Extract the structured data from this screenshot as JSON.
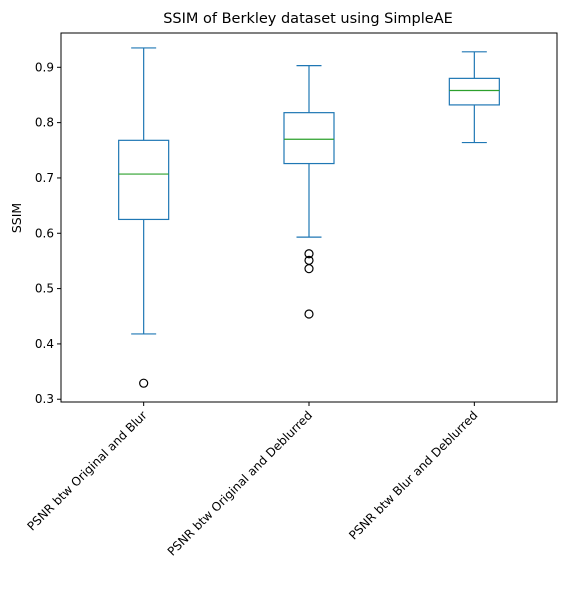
{
  "chart_data": {
    "type": "box",
    "title": "SSIM of Berkley dataset using SimpleAE",
    "xlabel": "",
    "ylabel": "SSIM",
    "ylim": [
      0.295,
      0.962
    ],
    "yticks": [
      0.3,
      0.4,
      0.5,
      0.6,
      0.7,
      0.8,
      0.9
    ],
    "grid": false,
    "colors": {
      "box": "#1f77b4",
      "median": "#2ca02c",
      "flier": "#000000"
    },
    "categories": [
      "PSNR btw Original and Blur",
      "PSNR btw Original and Deblurred",
      "PSNR btw Blur and Deblurred"
    ],
    "boxes": [
      {
        "whisker_low": 0.418,
        "q1": 0.625,
        "median": 0.707,
        "q3": 0.768,
        "whisker_high": 0.935,
        "fliers": [
          0.329
        ]
      },
      {
        "whisker_low": 0.593,
        "q1": 0.726,
        "median": 0.77,
        "q3": 0.818,
        "whisker_high": 0.903,
        "fliers": [
          0.563,
          0.551,
          0.536,
          0.454
        ]
      },
      {
        "whisker_low": 0.764,
        "q1": 0.832,
        "median": 0.858,
        "q3": 0.88,
        "whisker_high": 0.928,
        "fliers": []
      }
    ]
  }
}
